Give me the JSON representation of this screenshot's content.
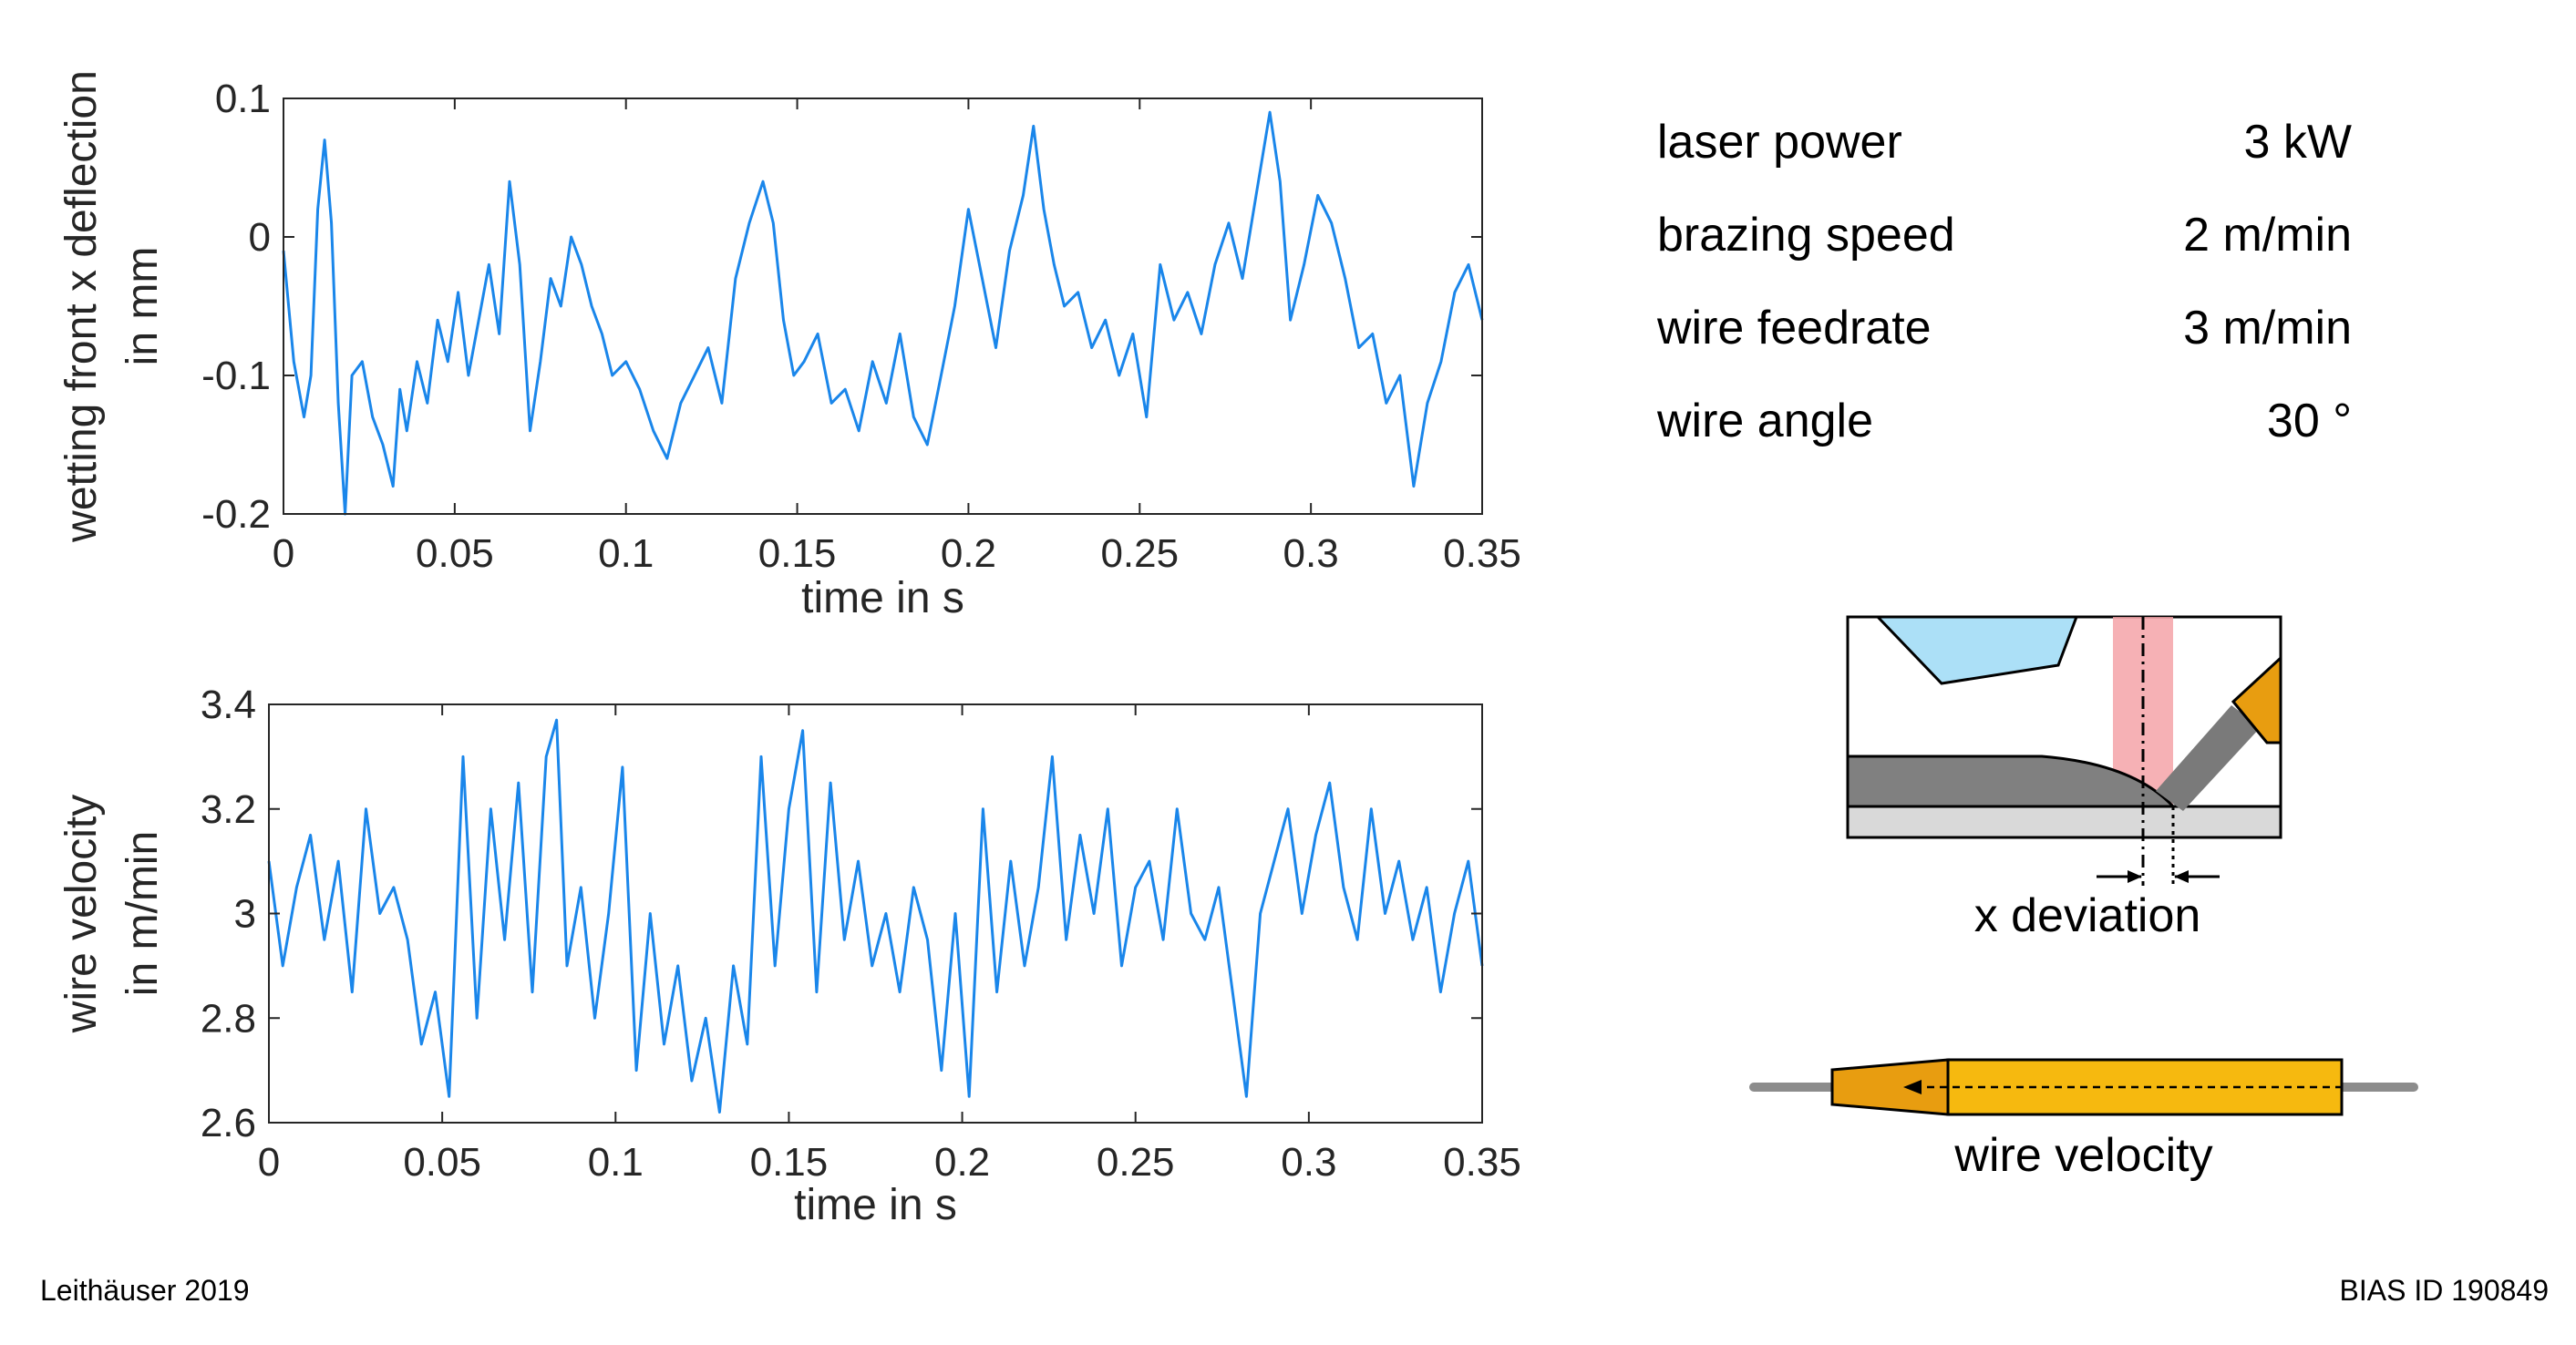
{
  "chart_data": [
    {
      "type": "line",
      "xlabel": "time in s",
      "ylabel_lines": [
        "wetting front x deflection",
        "in mm"
      ],
      "xlim": [
        0,
        0.35
      ],
      "ylim": [
        -0.2,
        0.1
      ],
      "xticks": [
        0,
        0.05,
        0.1,
        0.15,
        0.2,
        0.25,
        0.3,
        0.35
      ],
      "xtick_labels": [
        "0",
        "0.05",
        "0.1",
        "0.15",
        "0.2",
        "0.25",
        "0.3",
        "0.35"
      ],
      "yticks": [
        -0.2,
        -0.1,
        0,
        0.1
      ],
      "ytick_labels": [
        "-0.2",
        "-0.1",
        "0",
        "0.1"
      ],
      "grid": false,
      "series": [
        {
          "color": "#1a86ea",
          "x": [
            0,
            0.003,
            0.006,
            0.008,
            0.01,
            0.012,
            0.014,
            0.016,
            0.018,
            0.02,
            0.023,
            0.026,
            0.029,
            0.032,
            0.034,
            0.036,
            0.039,
            0.042,
            0.045,
            0.048,
            0.051,
            0.054,
            0.057,
            0.06,
            0.063,
            0.066,
            0.069,
            0.072,
            0.075,
            0.078,
            0.081,
            0.084,
            0.087,
            0.09,
            0.093,
            0.096,
            0.1,
            0.104,
            0.108,
            0.112,
            0.116,
            0.12,
            0.124,
            0.128,
            0.132,
            0.136,
            0.14,
            0.143,
            0.146,
            0.149,
            0.152,
            0.156,
            0.16,
            0.164,
            0.168,
            0.172,
            0.176,
            0.18,
            0.184,
            0.188,
            0.192,
            0.196,
            0.2,
            0.204,
            0.208,
            0.212,
            0.216,
            0.219,
            0.222,
            0.225,
            0.228,
            0.232,
            0.236,
            0.24,
            0.244,
            0.248,
            0.252,
            0.256,
            0.26,
            0.264,
            0.268,
            0.272,
            0.276,
            0.28,
            0.284,
            0.288,
            0.291,
            0.294,
            0.298,
            0.302,
            0.306,
            0.31,
            0.314,
            0.318,
            0.322,
            0.326,
            0.33,
            0.334,
            0.338,
            0.342,
            0.346,
            0.35
          ],
          "y": [
            -0.01,
            -0.09,
            -0.13,
            -0.1,
            0.02,
            0.07,
            0.01,
            -0.12,
            -0.2,
            -0.1,
            -0.09,
            -0.13,
            -0.15,
            -0.18,
            -0.11,
            -0.14,
            -0.09,
            -0.12,
            -0.06,
            -0.09,
            -0.04,
            -0.1,
            -0.06,
            -0.02,
            -0.07,
            0.04,
            -0.02,
            -0.14,
            -0.09,
            -0.03,
            -0.05,
            0,
            -0.02,
            -0.05,
            -0.07,
            -0.1,
            -0.09,
            -0.11,
            -0.14,
            -0.16,
            -0.12,
            -0.1,
            -0.08,
            -0.12,
            -0.03,
            0.01,
            0.04,
            0.01,
            -0.06,
            -0.1,
            -0.09,
            -0.07,
            -0.12,
            -0.11,
            -0.14,
            -0.09,
            -0.12,
            -0.07,
            -0.13,
            -0.15,
            -0.1,
            -0.05,
            0.02,
            -0.03,
            -0.08,
            -0.01,
            0.03,
            0.08,
            0.02,
            -0.02,
            -0.05,
            -0.04,
            -0.08,
            -0.06,
            -0.1,
            -0.07,
            -0.13,
            -0.02,
            -0.06,
            -0.04,
            -0.07,
            -0.02,
            0.01,
            -0.03,
            0.03,
            0.09,
            0.04,
            -0.06,
            -0.02,
            0.03,
            0.01,
            -0.03,
            -0.08,
            -0.07,
            -0.12,
            -0.1,
            -0.18,
            -0.12,
            -0.09,
            -0.04,
            -0.02,
            -0.06
          ]
        }
      ]
    },
    {
      "type": "line",
      "xlabel": "time in s",
      "ylabel_lines": [
        "wire velocity",
        "in m/min"
      ],
      "xlim": [
        0,
        0.35
      ],
      "ylim": [
        2.6,
        3.4
      ],
      "xticks": [
        0,
        0.05,
        0.1,
        0.15,
        0.2,
        0.25,
        0.3,
        0.35
      ],
      "xtick_labels": [
        "0",
        "0.05",
        "0.1",
        "0.15",
        "0.2",
        "0.25",
        "0.3",
        "0.35"
      ],
      "yticks": [
        2.6,
        2.8,
        3,
        3.2,
        3.4
      ],
      "ytick_labels": [
        "2.6",
        "2.8",
        "3",
        "3.2",
        "3.4"
      ],
      "grid": false,
      "series": [
        {
          "color": "#1a86ea",
          "x": [
            0,
            0.004,
            0.008,
            0.012,
            0.016,
            0.02,
            0.024,
            0.028,
            0.032,
            0.036,
            0.04,
            0.044,
            0.048,
            0.052,
            0.056,
            0.06,
            0.064,
            0.068,
            0.072,
            0.076,
            0.08,
            0.083,
            0.086,
            0.09,
            0.094,
            0.098,
            0.102,
            0.106,
            0.11,
            0.114,
            0.118,
            0.122,
            0.126,
            0.13,
            0.134,
            0.138,
            0.142,
            0.146,
            0.15,
            0.154,
            0.158,
            0.162,
            0.166,
            0.17,
            0.174,
            0.178,
            0.182,
            0.186,
            0.19,
            0.194,
            0.198,
            0.202,
            0.206,
            0.21,
            0.214,
            0.218,
            0.222,
            0.226,
            0.23,
            0.234,
            0.238,
            0.242,
            0.246,
            0.25,
            0.254,
            0.258,
            0.262,
            0.266,
            0.27,
            0.274,
            0.278,
            0.282,
            0.286,
            0.29,
            0.294,
            0.298,
            0.302,
            0.306,
            0.31,
            0.314,
            0.318,
            0.322,
            0.326,
            0.33,
            0.334,
            0.338,
            0.342,
            0.346,
            0.35
          ],
          "y": [
            3.1,
            2.9,
            3.05,
            3.15,
            2.95,
            3.1,
            2.85,
            3.2,
            3.0,
            3.05,
            2.95,
            2.75,
            2.85,
            2.65,
            3.3,
            2.8,
            3.2,
            2.95,
            3.25,
            2.85,
            3.3,
            3.37,
            2.9,
            3.05,
            2.8,
            3.0,
            3.28,
            2.7,
            3.0,
            2.75,
            2.9,
            2.68,
            2.8,
            2.62,
            2.9,
            2.75,
            3.3,
            2.9,
            3.2,
            3.35,
            2.85,
            3.25,
            2.95,
            3.1,
            2.9,
            3.0,
            2.85,
            3.05,
            2.95,
            2.7,
            3.0,
            2.65,
            3.2,
            2.85,
            3.1,
            2.9,
            3.05,
            3.3,
            2.95,
            3.15,
            3.0,
            3.2,
            2.9,
            3.05,
            3.1,
            2.95,
            3.2,
            3.0,
            2.95,
            3.05,
            2.85,
            2.65,
            3.0,
            3.1,
            3.2,
            3.0,
            3.15,
            3.25,
            3.05,
            2.95,
            3.2,
            3.0,
            3.1,
            2.95,
            3.05,
            2.85,
            3.0,
            3.1,
            2.9
          ]
        }
      ]
    }
  ],
  "params": [
    {
      "label": "laser power",
      "value": "3 kW"
    },
    {
      "label": "brazing speed",
      "value": "2 m/min"
    },
    {
      "label": "wire feedrate",
      "value": "3 m/min"
    },
    {
      "label": "wire angle",
      "value": "30 °"
    }
  ],
  "diagram": {
    "deviation_label": "x deviation",
    "wire_label": "wire velocity",
    "colors": {
      "nozzle": "#ace0f7",
      "laser": "#f4a3a8",
      "wire_holder": "#e89d10",
      "feeder": "#f6b90f",
      "workpiece": "#808080",
      "base": "#d9d9d9"
    }
  },
  "footer": {
    "left": "Leithäuser 2019",
    "right": "BIAS ID 190849"
  }
}
